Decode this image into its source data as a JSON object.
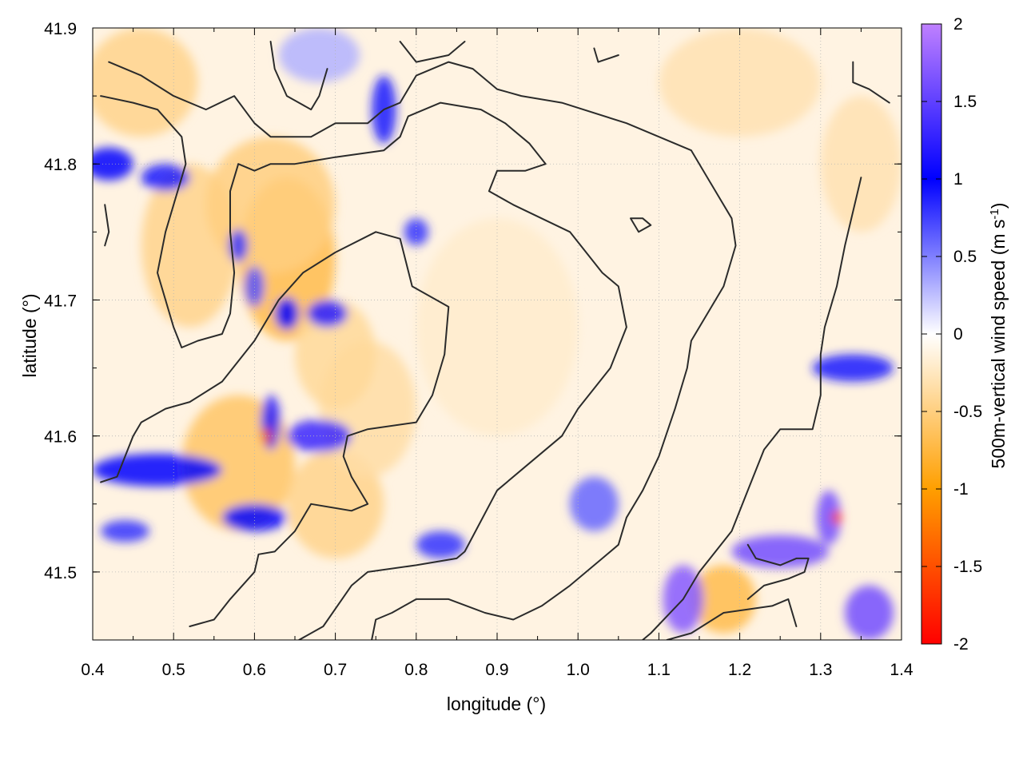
{
  "chart_data": {
    "type": "heatmap",
    "title": "",
    "xlabel": "longitude (°)",
    "ylabel": "latitude (°)",
    "xlim": [
      0.4,
      1.4
    ],
    "ylim": [
      41.45,
      41.9
    ],
    "x_ticks": [
      {
        "value": 0.4,
        "label": "0.4"
      },
      {
        "value": 0.5,
        "label": "0.5"
      },
      {
        "value": 0.6,
        "label": "0.6"
      },
      {
        "value": 0.7,
        "label": "0.7"
      },
      {
        "value": 0.8,
        "label": "0.8"
      },
      {
        "value": 0.9,
        "label": "0.9"
      },
      {
        "value": 1.0,
        "label": "1.0"
      },
      {
        "value": 1.1,
        "label": "1.1"
      },
      {
        "value": 1.2,
        "label": "1.2"
      },
      {
        "value": 1.3,
        "label": "1.3"
      },
      {
        "value": 1.4,
        "label": "1.4"
      }
    ],
    "y_ticks": [
      {
        "value": 41.5,
        "label": "41.5"
      },
      {
        "value": 41.6,
        "label": "41.6"
      },
      {
        "value": 41.7,
        "label": "41.7"
      },
      {
        "value": 41.8,
        "label": "41.8"
      },
      {
        "value": 41.9,
        "label": "41.9"
      }
    ],
    "grid": true,
    "colorbar": {
      "label_main": "500m-vertical wind speed (m s",
      "label_sup": "-1",
      "label_end": ")",
      "range": [
        -2,
        2
      ],
      "ticks": [
        {
          "value": 2,
          "label": "2"
        },
        {
          "value": 1.5,
          "label": "1.5"
        },
        {
          "value": 1,
          "label": "1"
        },
        {
          "value": 0.5,
          "label": "0.5"
        },
        {
          "value": 0,
          "label": "0"
        },
        {
          "value": -0.5,
          "label": "-0.5"
        },
        {
          "value": -1,
          "label": "-1"
        },
        {
          "value": -1.5,
          "label": "-1.5"
        },
        {
          "value": -2,
          "label": "-2"
        }
      ],
      "colors": [
        {
          "value": -2,
          "color": "#ff0000"
        },
        {
          "value": -1,
          "color": "#ff9f00"
        },
        {
          "value": 0,
          "color": "#ffffff"
        },
        {
          "value": 1,
          "color": "#0000ff"
        },
        {
          "value": 2,
          "color": "#bf80ff"
        }
      ]
    },
    "field_features": [
      {
        "lon": 0.46,
        "lat": 41.86,
        "value": -0.45,
        "rlon": 0.07,
        "rlat": 0.04
      },
      {
        "lon": 0.52,
        "lat": 41.74,
        "value": -0.45,
        "rlon": 0.06,
        "rlat": 0.06
      },
      {
        "lon": 0.64,
        "lat": 41.73,
        "value": -0.7,
        "rlon": 0.06,
        "rlat": 0.06
      },
      {
        "lon": 0.62,
        "lat": 41.77,
        "value": -0.5,
        "rlon": 0.08,
        "rlat": 0.05
      },
      {
        "lon": 0.58,
        "lat": 41.58,
        "value": -0.6,
        "rlon": 0.07,
        "rlat": 0.05
      },
      {
        "lon": 0.7,
        "lat": 41.55,
        "value": -0.45,
        "rlon": 0.06,
        "rlat": 0.04
      },
      {
        "lon": 0.74,
        "lat": 41.62,
        "value": -0.35,
        "rlon": 0.06,
        "rlat": 0.05
      },
      {
        "lon": 0.7,
        "lat": 41.66,
        "value": -0.4,
        "rlon": 0.05,
        "rlat": 0.04
      },
      {
        "lon": 1.18,
        "lat": 41.48,
        "value": -0.7,
        "rlon": 0.04,
        "rlat": 0.025
      },
      {
        "lon": 0.9,
        "lat": 41.68,
        "value": -0.2,
        "rlon": 0.1,
        "rlat": 0.08
      },
      {
        "lon": 1.2,
        "lat": 41.86,
        "value": -0.3,
        "rlon": 0.1,
        "rlat": 0.04
      },
      {
        "lon": 1.35,
        "lat": 41.8,
        "value": -0.3,
        "rlon": 0.05,
        "rlat": 0.05
      },
      {
        "lon": 0.42,
        "lat": 41.8,
        "value": 1.0,
        "rlon": 0.03,
        "rlat": 0.012
      },
      {
        "lon": 0.49,
        "lat": 41.79,
        "value": 0.9,
        "rlon": 0.03,
        "rlat": 0.01
      },
      {
        "lon": 0.58,
        "lat": 41.74,
        "value": 0.8,
        "rlon": 0.012,
        "rlat": 0.012
      },
      {
        "lon": 0.6,
        "lat": 41.71,
        "value": 0.7,
        "rlon": 0.012,
        "rlat": 0.015
      },
      {
        "lon": 0.64,
        "lat": 41.69,
        "value": 1.0,
        "rlon": 0.015,
        "rlat": 0.012
      },
      {
        "lon": 0.69,
        "lat": 41.69,
        "value": 1.2,
        "rlon": 0.025,
        "rlat": 0.01
      },
      {
        "lon": 0.76,
        "lat": 41.84,
        "value": 0.9,
        "rlon": 0.015,
        "rlat": 0.025
      },
      {
        "lon": 0.8,
        "lat": 41.75,
        "value": 0.8,
        "rlon": 0.015,
        "rlat": 0.01
      },
      {
        "lon": 0.62,
        "lat": 41.61,
        "value": 1.2,
        "rlon": 0.012,
        "rlat": 0.02
      },
      {
        "lon": 0.68,
        "lat": 41.6,
        "value": 1.3,
        "rlon": 0.04,
        "rlat": 0.012
      },
      {
        "lon": 0.48,
        "lat": 41.575,
        "value": 1.0,
        "rlon": 0.08,
        "rlat": 0.012
      },
      {
        "lon": 0.6,
        "lat": 41.54,
        "value": 1.0,
        "rlon": 0.04,
        "rlat": 0.01
      },
      {
        "lon": 0.44,
        "lat": 41.53,
        "value": 0.8,
        "rlon": 0.03,
        "rlat": 0.008
      },
      {
        "lon": 0.83,
        "lat": 41.52,
        "value": 0.8,
        "rlon": 0.03,
        "rlat": 0.01
      },
      {
        "lon": 1.25,
        "lat": 41.515,
        "value": 1.6,
        "rlon": 0.06,
        "rlat": 0.012
      },
      {
        "lon": 1.31,
        "lat": 41.54,
        "value": 1.6,
        "rlon": 0.015,
        "rlat": 0.02
      },
      {
        "lon": 1.13,
        "lat": 41.48,
        "value": 1.7,
        "rlon": 0.025,
        "rlat": 0.025
      },
      {
        "lon": 1.36,
        "lat": 41.47,
        "value": 1.6,
        "rlon": 0.03,
        "rlat": 0.02
      },
      {
        "lon": 1.34,
        "lat": 41.65,
        "value": 0.9,
        "rlon": 0.05,
        "rlat": 0.01
      },
      {
        "lon": 0.68,
        "lat": 41.88,
        "value": 0.3,
        "rlon": 0.05,
        "rlat": 0.02
      },
      {
        "lon": 1.02,
        "lat": 41.55,
        "value": 0.6,
        "rlon": 0.03,
        "rlat": 0.02
      },
      {
        "lon": 1.32,
        "lat": 41.54,
        "value": -1.6,
        "rlon": 0.006,
        "rlat": 0.005
      },
      {
        "lon": 0.615,
        "lat": 41.6,
        "value": -1.5,
        "rlon": 0.006,
        "rlat": 0.006
      }
    ],
    "contours": [
      [
        [
          0.41,
          41.566
        ],
        [
          0.43,
          41.57
        ],
        [
          0.45,
          41.6
        ],
        [
          0.46,
          41.61
        ],
        [
          0.49,
          41.62
        ],
        [
          0.52,
          41.625
        ],
        [
          0.56,
          41.64
        ],
        [
          0.6,
          41.67
        ],
        [
          0.63,
          41.7
        ],
        [
          0.66,
          41.72
        ],
        [
          0.7,
          41.735
        ],
        [
          0.75,
          41.75
        ],
        [
          0.78,
          41.745
        ],
        [
          0.795,
          41.71
        ],
        [
          0.84,
          41.695
        ],
        [
          0.835,
          41.66
        ],
        [
          0.82,
          41.63
        ],
        [
          0.8,
          41.61
        ],
        [
          0.74,
          41.605
        ],
        [
          0.715,
          41.6
        ],
        [
          0.71,
          41.585
        ],
        [
          0.72,
          41.57
        ],
        [
          0.74,
          41.55
        ],
        [
          0.72,
          41.545
        ],
        [
          0.67,
          41.55
        ],
        [
          0.65,
          41.53
        ],
        [
          0.625,
          41.515
        ],
        [
          0.605,
          41.513
        ],
        [
          0.6,
          41.5
        ],
        [
          0.57,
          41.48
        ],
        [
          0.55,
          41.465
        ],
        [
          0.52,
          41.46
        ]
      ],
      [
        [
          0.42,
          41.875
        ],
        [
          0.46,
          41.865
        ],
        [
          0.5,
          41.85
        ],
        [
          0.54,
          41.84
        ],
        [
          0.575,
          41.85
        ],
        [
          0.6,
          41.83
        ],
        [
          0.62,
          41.82
        ],
        [
          0.67,
          41.82
        ],
        [
          0.7,
          41.83
        ],
        [
          0.74,
          41.83
        ],
        [
          0.76,
          41.84
        ],
        [
          0.78,
          41.845
        ],
        [
          0.8,
          41.865
        ],
        [
          0.84,
          41.875
        ],
        [
          0.87,
          41.87
        ],
        [
          0.9,
          41.855
        ],
        [
          0.93,
          41.85
        ],
        [
          0.98,
          41.845
        ],
        [
          1.06,
          41.83
        ],
        [
          1.14,
          41.81
        ],
        [
          1.17,
          41.78
        ],
        [
          1.19,
          41.76
        ],
        [
          1.195,
          41.74
        ],
        [
          1.18,
          41.71
        ],
        [
          1.15,
          41.68
        ],
        [
          1.14,
          41.67
        ],
        [
          1.135,
          41.65
        ],
        [
          1.12,
          41.62
        ],
        [
          1.1,
          41.585
        ],
        [
          1.08,
          41.56
        ],
        [
          1.06,
          41.54
        ],
        [
          1.05,
          41.52
        ],
        [
          1.03,
          41.51
        ],
        [
          0.99,
          41.49
        ],
        [
          0.955,
          41.475
        ],
        [
          0.92,
          41.465
        ],
        [
          0.885,
          41.47
        ],
        [
          0.84,
          41.48
        ],
        [
          0.8,
          41.48
        ],
        [
          0.77,
          41.47
        ],
        [
          0.75,
          41.465
        ],
        [
          0.745,
          41.45
        ]
      ],
      [
        [
          0.41,
          41.85
        ],
        [
          0.45,
          41.845
        ],
        [
          0.48,
          41.84
        ],
        [
          0.51,
          41.82
        ],
        [
          0.515,
          41.8
        ],
        [
          0.5,
          41.77
        ],
        [
          0.49,
          41.75
        ],
        [
          0.48,
          41.72
        ],
        [
          0.49,
          41.7
        ],
        [
          0.5,
          41.68
        ],
        [
          0.51,
          41.665
        ],
        [
          0.53,
          41.67
        ],
        [
          0.56,
          41.675
        ],
        [
          0.57,
          41.69
        ],
        [
          0.575,
          41.72
        ],
        [
          0.57,
          41.75
        ],
        [
          0.57,
          41.78
        ],
        [
          0.58,
          41.8
        ],
        [
          0.6,
          41.795
        ],
        [
          0.62,
          41.8
        ],
        [
          0.65,
          41.8
        ],
        [
          0.7,
          41.805
        ],
        [
          0.76,
          41.81
        ],
        [
          0.78,
          41.82
        ],
        [
          0.79,
          41.835
        ],
        [
          0.83,
          41.845
        ],
        [
          0.88,
          41.84
        ],
        [
          0.91,
          41.83
        ],
        [
          0.94,
          41.815
        ],
        [
          0.96,
          41.8
        ],
        [
          0.935,
          41.795
        ],
        [
          0.9,
          41.795
        ],
        [
          0.89,
          41.78
        ],
        [
          0.92,
          41.77
        ],
        [
          0.99,
          41.75
        ],
        [
          1.03,
          41.72
        ],
        [
          1.05,
          41.71
        ],
        [
          1.06,
          41.68
        ],
        [
          1.04,
          41.65
        ],
        [
          1.0,
          41.62
        ],
        [
          0.98,
          41.6
        ],
        [
          0.94,
          41.58
        ],
        [
          0.9,
          41.56
        ],
        [
          0.86,
          41.515
        ],
        [
          0.85,
          41.51
        ],
        [
          0.8,
          41.505
        ],
        [
          0.74,
          41.5
        ],
        [
          0.72,
          41.49
        ],
        [
          0.685,
          41.46
        ],
        [
          0.655,
          41.45
        ]
      ],
      [
        [
          1.35,
          41.79
        ],
        [
          1.33,
          41.74
        ],
        [
          1.32,
          41.71
        ],
        [
          1.305,
          41.68
        ],
        [
          1.3,
          41.66
        ],
        [
          1.3,
          41.63
        ],
        [
          1.29,
          41.605
        ],
        [
          1.25,
          41.605
        ],
        [
          1.23,
          41.59
        ],
        [
          1.21,
          41.56
        ],
        [
          1.19,
          41.53
        ],
        [
          1.15,
          41.5
        ],
        [
          1.13,
          41.48
        ],
        [
          1.09,
          41.455
        ],
        [
          1.07,
          41.445
        ],
        [
          1.02,
          41.445
        ]
      ],
      [
        [
          1.21,
          41.52
        ],
        [
          1.22,
          41.51
        ],
        [
          1.25,
          41.505
        ],
        [
          1.27,
          41.51
        ],
        [
          1.285,
          41.51
        ],
        [
          1.28,
          41.5
        ],
        [
          1.26,
          41.495
        ],
        [
          1.23,
          41.49
        ],
        [
          1.21,
          41.48
        ]
      ],
      [
        [
          1.065,
          41.76
        ],
        [
          1.08,
          41.76
        ],
        [
          1.09,
          41.755
        ],
        [
          1.075,
          41.75
        ],
        [
          1.065,
          41.76
        ]
      ],
      [
        [
          1.11,
          41.45
        ],
        [
          1.14,
          41.455
        ],
        [
          1.18,
          41.47
        ],
        [
          1.24,
          41.475
        ],
        [
          1.26,
          41.48
        ],
        [
          1.27,
          41.46
        ]
      ],
      [
        [
          0.62,
          41.89
        ],
        [
          0.625,
          41.87
        ],
        [
          0.64,
          41.85
        ],
        [
          0.67,
          41.84
        ],
        [
          0.68,
          41.85
        ],
        [
          0.69,
          41.87
        ]
      ],
      [
        [
          0.78,
          41.89
        ],
        [
          0.8,
          41.875
        ],
        [
          0.84,
          41.88
        ],
        [
          0.86,
          41.89
        ]
      ],
      [
        [
          1.02,
          41.885
        ],
        [
          1.025,
          41.875
        ],
        [
          1.05,
          41.88
        ]
      ],
      [
        [
          1.34,
          41.875
        ],
        [
          1.34,
          41.86
        ],
        [
          1.36,
          41.855
        ],
        [
          1.385,
          41.845
        ]
      ],
      [
        [
          0.415,
          41.77
        ],
        [
          0.42,
          41.75
        ],
        [
          0.415,
          41.74
        ]
      ]
    ]
  }
}
